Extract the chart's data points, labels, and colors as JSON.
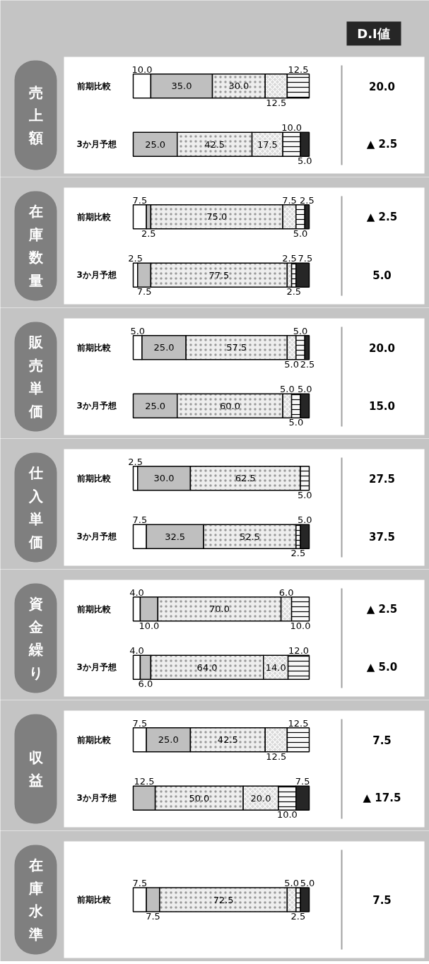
{
  "chart_data": [
    {
      "type": "bar",
      "orientation": "horizontal",
      "stacked": true,
      "tick_labels": "y",
      "title": "売上額",
      "y2label": "D.I値",
      "categories": [
        "前期比較",
        "3か月予想"
      ],
      "series": [
        {
          "color": "#ffffff",
          "values": [
            10.0,
            0
          ],
          "value_labels": [
            "10.0",
            null
          ]
        },
        {
          "color": "#bfbfbf",
          "values": [
            35.0,
            25.0
          ],
          "value_labels": [
            "35.0",
            "25.0"
          ]
        },
        {
          "color": "#eeeeee",
          "values": [
            30.0,
            42.5
          ],
          "value_labels": [
            "30.0",
            "42.5"
          ]
        },
        {
          "color": "#d9d9d9",
          "values": [
            12.5,
            17.5
          ],
          "value_labels": [
            "12.5",
            "17.5"
          ]
        },
        {
          "color": "#f8f8f8",
          "values": [
            12.5,
            10.0
          ],
          "value_labels": [
            "12.5",
            "10.0"
          ]
        },
        {
          "color": "#262626",
          "values": [
            0,
            5.0
          ],
          "value_labels": [
            null,
            "5.0"
          ]
        }
      ],
      "annotations": [
        "20.0",
        "▲ 2.5"
      ]
    },
    {
      "type": "bar",
      "orientation": "horizontal",
      "stacked": true,
      "tick_labels": "y",
      "title": "在庫数量",
      "categories": [
        "前期比較",
        "3か月予想"
      ],
      "series": [
        {
          "color": "#ffffff",
          "values": [
            7.5,
            2.5
          ],
          "value_labels": [
            "7.5",
            "2.5"
          ]
        },
        {
          "color": "#bfbfbf",
          "values": [
            2.5,
            7.5
          ],
          "value_labels": [
            "2.5",
            "7.5"
          ]
        },
        {
          "color": "#eeeeee",
          "values": [
            75.0,
            77.5
          ],
          "value_labels": [
            "75.0",
            "77.5"
          ]
        },
        {
          "color": "#d9d9d9",
          "values": [
            7.5,
            2.5
          ],
          "value_labels": [
            "7.5",
            "2.5"
          ]
        },
        {
          "color": "#f8f8f8",
          "values": [
            5.0,
            2.5
          ],
          "value_labels": [
            "5.0",
            "2.5"
          ]
        },
        {
          "color": "#262626",
          "values": [
            2.5,
            7.5
          ],
          "value_labels": [
            "2.5",
            "7.5"
          ]
        }
      ],
      "annotations": [
        "▲ 2.5",
        "5.0"
      ]
    },
    {
      "type": "bar",
      "orientation": "horizontal",
      "stacked": true,
      "tick_labels": "y",
      "title": "販売単価",
      "categories": [
        "前期比較",
        "3か月予想"
      ],
      "series": [
        {
          "color": "#ffffff",
          "values": [
            5.0,
            0
          ],
          "value_labels": [
            "5.0",
            null
          ]
        },
        {
          "color": "#bfbfbf",
          "values": [
            25.0,
            25.0
          ],
          "value_labels": [
            "25.0",
            "25.0"
          ]
        },
        {
          "color": "#eeeeee",
          "values": [
            57.5,
            60.0
          ],
          "value_labels": [
            "57.5",
            "60.0"
          ]
        },
        {
          "color": "#d9d9d9",
          "values": [
            5.0,
            5.0
          ],
          "value_labels": [
            "5.0",
            "5.0"
          ]
        },
        {
          "color": "#f8f8f8",
          "values": [
            5.0,
            5.0
          ],
          "value_labels": [
            "5.0",
            "5.0"
          ]
        },
        {
          "color": "#262626",
          "values": [
            2.5,
            5.0
          ],
          "value_labels": [
            "2.5",
            "5.0"
          ]
        }
      ],
      "annotations": [
        "20.0",
        "15.0"
      ]
    },
    {
      "type": "bar",
      "orientation": "horizontal",
      "stacked": true,
      "tick_labels": "y",
      "title": "仕入単価",
      "categories": [
        "前期比較",
        "3か月予想"
      ],
      "series": [
        {
          "color": "#ffffff",
          "values": [
            2.5,
            7.5
          ],
          "value_labels": [
            "2.5",
            "7.5"
          ]
        },
        {
          "color": "#bfbfbf",
          "values": [
            30.0,
            32.5
          ],
          "value_labels": [
            "30.0",
            "32.5"
          ]
        },
        {
          "color": "#eeeeee",
          "values": [
            62.5,
            52.5
          ],
          "value_labels": [
            "62.5",
            "52.5"
          ]
        },
        {
          "color": "#f8f8f8",
          "values": [
            5.0,
            2.5
          ],
          "value_labels": [
            "5.0",
            "2.5"
          ]
        },
        {
          "color": "#262626",
          "values": [
            0,
            5.0
          ],
          "value_labels": [
            null,
            "5.0"
          ]
        }
      ],
      "annotations": [
        "27.5",
        "37.5"
      ]
    },
    {
      "type": "bar",
      "orientation": "horizontal",
      "stacked": true,
      "tick_labels": "y",
      "title": "資金繰り",
      "categories": [
        "前期比較",
        "3か月予想"
      ],
      "series": [
        {
          "color": "#ffffff",
          "values": [
            4.0,
            4.0
          ],
          "value_labels": [
            "4.0",
            "4.0"
          ]
        },
        {
          "color": "#bfbfbf",
          "values": [
            10.0,
            6.0
          ],
          "value_labels": [
            "10.0",
            "6.0"
          ]
        },
        {
          "color": "#eeeeee",
          "values": [
            70.0,
            64.0
          ],
          "value_labels": [
            "70.0",
            "64.0"
          ]
        },
        {
          "color": "#d9d9d9",
          "values": [
            6.0,
            14.0
          ],
          "value_labels": [
            "6.0",
            "14.0"
          ]
        },
        {
          "color": "#f8f8f8",
          "values": [
            10.0,
            12.0
          ],
          "value_labels": [
            "10.0",
            "12.0"
          ]
        }
      ],
      "annotations": [
        "▲ 2.5",
        "▲ 5.0"
      ]
    },
    {
      "type": "bar",
      "orientation": "horizontal",
      "stacked": true,
      "tick_labels": "y",
      "title": "収益",
      "categories": [
        "前期比較",
        "3か月予想"
      ],
      "series": [
        {
          "color": "#ffffff",
          "values": [
            7.5,
            0
          ],
          "value_labels": [
            "7.5",
            null
          ]
        },
        {
          "color": "#bfbfbf",
          "values": [
            25.0,
            12.5
          ],
          "value_labels": [
            "25.0",
            "12.5"
          ]
        },
        {
          "color": "#eeeeee",
          "values": [
            42.5,
            50.0
          ],
          "value_labels": [
            "42.5",
            "50.0"
          ]
        },
        {
          "color": "#d9d9d9",
          "values": [
            12.5,
            20.0
          ],
          "value_labels": [
            "12.5",
            "20.0"
          ]
        },
        {
          "color": "#f8f8f8",
          "values": [
            12.5,
            10.0
          ],
          "value_labels": [
            "12.5",
            "10.0"
          ]
        },
        {
          "color": "#262626",
          "values": [
            0,
            7.5
          ],
          "value_labels": [
            null,
            "7.5"
          ]
        }
      ],
      "annotations": [
        "7.5",
        "▲ 17.5"
      ]
    },
    {
      "type": "bar",
      "orientation": "horizontal",
      "stacked": true,
      "tick_labels": "y",
      "title": "在庫水準",
      "categories": [
        "前期比較"
      ],
      "series": [
        {
          "color": "#ffffff",
          "values": [
            7.5
          ],
          "value_labels": [
            "7.5"
          ]
        },
        {
          "color": "#bfbfbf",
          "values": [
            7.5
          ],
          "value_labels": [
            "7.5"
          ]
        },
        {
          "color": "#eeeeee",
          "values": [
            72.5
          ],
          "value_labels": [
            "72.5"
          ]
        },
        {
          "color": "#d9d9d9",
          "values": [
            5.0
          ],
          "value_labels": [
            "5.0"
          ]
        },
        {
          "color": "#f8f8f8",
          "values": [
            2.5
          ],
          "value_labels": [
            "2.5"
          ]
        },
        {
          "color": "#262626",
          "values": [
            5.0
          ],
          "value_labels": [
            "5.0"
          ]
        }
      ],
      "annotations": [
        "7.5"
      ]
    }
  ]
}
